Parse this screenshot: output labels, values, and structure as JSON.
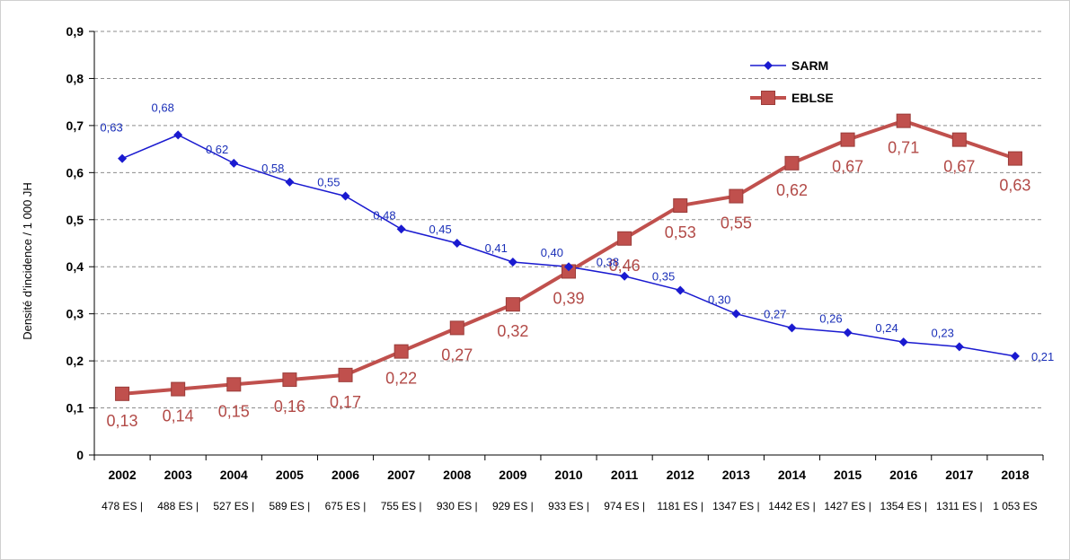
{
  "chart_data": {
    "type": "line",
    "title": "",
    "xlabel": "",
    "ylabel": "Densité d’incidence / 1 000 JH",
    "ylim": [
      0,
      0.9
    ],
    "yticks": [
      "0",
      "0,1",
      "0,2",
      "0,3",
      "0,4",
      "0,5",
      "0,6",
      "0,7",
      "0,8",
      "0,9"
    ],
    "grid": "horizontal-dashed",
    "categories": [
      "2002",
      "2003",
      "2004",
      "2005",
      "2006",
      "2007",
      "2008",
      "2009",
      "2010",
      "2011",
      "2012",
      "2013",
      "2014",
      "2015",
      "2016",
      "2017",
      "2018"
    ],
    "sublabels": [
      "478 ES |",
      "488 ES |",
      "527 ES |",
      "589 ES |",
      "675 ES |",
      "755 ES |",
      "930 ES |",
      "929 ES |",
      "933 ES |",
      "974 ES |",
      "1181 ES |",
      "1347 ES |",
      "1442 ES |",
      "1427 ES |",
      "1354 ES |",
      "1311 ES |",
      "1 053 ES"
    ],
    "legend_position": "top-right",
    "series": [
      {
        "name": "SARM",
        "color": "#1a1ad0",
        "marker": "diamond",
        "values": [
          0.63,
          0.68,
          0.62,
          0.58,
          0.55,
          0.48,
          0.45,
          0.41,
          0.4,
          0.38,
          0.35,
          0.3,
          0.27,
          0.26,
          0.24,
          0.23,
          0.21
        ],
        "labels": [
          "0,63",
          "0,68",
          "0,62",
          "0,58",
          "0,55",
          "0,48",
          "0,45",
          "0,41",
          "0,40",
          "0,38",
          "0,35",
          "0,30",
          "0,27",
          "0,26",
          "0,24",
          "0,23",
          "0,21"
        ]
      },
      {
        "name": "EBLSE",
        "color": "#c0504d",
        "marker": "square",
        "values": [
          0.13,
          0.14,
          0.15,
          0.16,
          0.17,
          0.22,
          0.27,
          0.32,
          0.39,
          0.46,
          0.53,
          0.55,
          0.62,
          0.67,
          0.71,
          0.67,
          0.63
        ],
        "labels": [
          "0,13",
          "0,14",
          "0,15",
          "0,16",
          "0,17",
          "0,22",
          "0,27",
          "0,32",
          "0,39",
          "0,46",
          "0,53",
          "0,55",
          "0,62",
          "0,67",
          "0,71",
          "0,67",
          "0,63"
        ]
      }
    ]
  }
}
